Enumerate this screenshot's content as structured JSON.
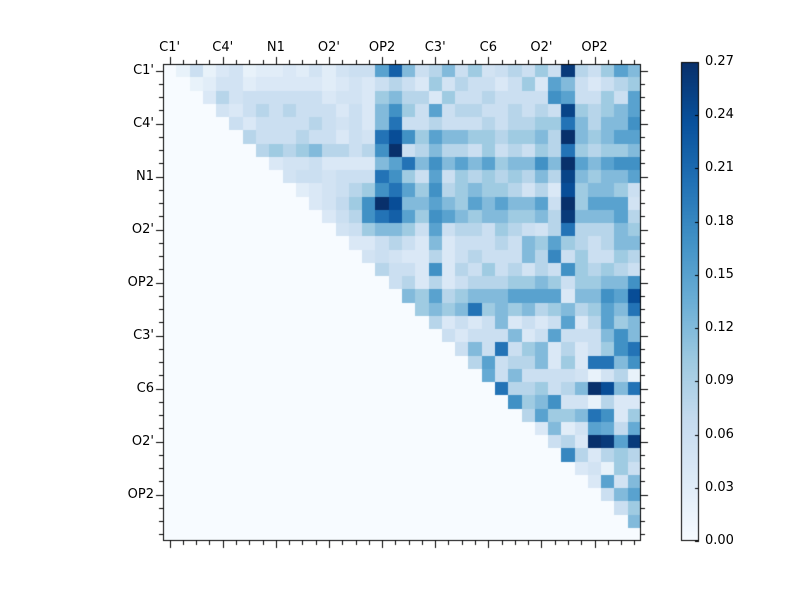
{
  "chart_data": {
    "type": "heatmap",
    "title": "",
    "xlabel": "",
    "ylabel": "",
    "n": 36,
    "x_tick_labels": [
      "C1'",
      "C4'",
      "N1",
      "O2'",
      "OP2",
      "C3'",
      "C6",
      "O2'",
      "OP2"
    ],
    "y_tick_labels": [
      "C1'",
      "C4'",
      "N1",
      "O2'",
      "OP2",
      "C3'",
      "C6",
      "O2'",
      "OP2"
    ],
    "tick_label_cell_positions": [
      0,
      4,
      8,
      12,
      16,
      20,
      24,
      28,
      32
    ],
    "triangle": "upper",
    "grid": false,
    "colorbar": {
      "position": "right",
      "vmin": 0.0,
      "vmax": 0.27,
      "tick_labels": [
        "0.00",
        "0.03",
        "0.06",
        "0.09",
        "0.12",
        "0.15",
        "0.18",
        "0.21",
        "0.24",
        "0.27"
      ]
    },
    "matrix": [
      [
        0,
        0.02,
        0.06,
        0.02,
        0.04,
        0.05,
        0.02,
        0.03,
        0.03,
        0.04,
        0.03,
        0.05,
        0.03,
        0.05,
        0.06,
        0.06,
        0.15,
        0.22,
        0.12,
        0.06,
        0.08,
        0.12,
        0.06,
        0.1,
        0.05,
        0.06,
        0.08,
        0.06,
        0.1,
        0.06,
        0.26,
        0.08,
        0.06,
        0.1,
        0.15,
        0.12
      ],
      [
        0,
        0,
        0.02,
        0.03,
        0.05,
        0.05,
        0.03,
        0.04,
        0.04,
        0.04,
        0.04,
        0.04,
        0.03,
        0.04,
        0.05,
        0.04,
        0.06,
        0.08,
        0.06,
        0.04,
        0.1,
        0.05,
        0.08,
        0.06,
        0.06,
        0.04,
        0.06,
        0.1,
        0.04,
        0.15,
        0.12,
        0.06,
        0.04,
        0.06,
        0.08,
        0.1
      ],
      [
        0,
        0,
        0,
        0.04,
        0.08,
        0.05,
        0.06,
        0.06,
        0.06,
        0.06,
        0.06,
        0.06,
        0.04,
        0.05,
        0.05,
        0.04,
        0.1,
        0.12,
        0.08,
        0.08,
        0.04,
        0.1,
        0.06,
        0.06,
        0.08,
        0.06,
        0.06,
        0.06,
        0.06,
        0.17,
        0.15,
        0.06,
        0.06,
        0.1,
        0.06,
        0.15
      ],
      [
        0,
        0,
        0,
        0,
        0.05,
        0.04,
        0.06,
        0.08,
        0.06,
        0.08,
        0.06,
        0.06,
        0.06,
        0.04,
        0.06,
        0.04,
        0.12,
        0.17,
        0.1,
        0.06,
        0.15,
        0.06,
        0.08,
        0.08,
        0.06,
        0.06,
        0.08,
        0.06,
        0.08,
        0.06,
        0.25,
        0.1,
        0.08,
        0.1,
        0.12,
        0.15
      ],
      [
        0,
        0,
        0,
        0,
        0,
        0.06,
        0.04,
        0.06,
        0.06,
        0.06,
        0.06,
        0.08,
        0.06,
        0.05,
        0.06,
        0.04,
        0.12,
        0.2,
        0.06,
        0.06,
        0.08,
        0.06,
        0.06,
        0.06,
        0.08,
        0.06,
        0.08,
        0.08,
        0.1,
        0.1,
        0.2,
        0.12,
        0.08,
        0.12,
        0.12,
        0.17
      ],
      [
        0,
        0,
        0,
        0,
        0,
        0,
        0.08,
        0.06,
        0.06,
        0.06,
        0.08,
        0.06,
        0.06,
        0.04,
        0.06,
        0.05,
        0.2,
        0.24,
        0.17,
        0.1,
        0.15,
        0.12,
        0.12,
        0.1,
        0.1,
        0.08,
        0.1,
        0.1,
        0.12,
        0.08,
        0.27,
        0.12,
        0.1,
        0.12,
        0.15,
        0.15
      ],
      [
        0,
        0,
        0,
        0,
        0,
        0,
        0,
        0.08,
        0.1,
        0.08,
        0.1,
        0.12,
        0.08,
        0.08,
        0.06,
        0.08,
        0.17,
        0.27,
        0.06,
        0.08,
        0.12,
        0.08,
        0.08,
        0.06,
        0.1,
        0.06,
        0.08,
        0.06,
        0.1,
        0.08,
        0.2,
        0.1,
        0.08,
        0.1,
        0.1,
        0.12
      ],
      [
        0,
        0,
        0,
        0,
        0,
        0,
        0,
        0,
        0.04,
        0.05,
        0.05,
        0.06,
        0.04,
        0.04,
        0.04,
        0.04,
        0.12,
        0.15,
        0.2,
        0.12,
        0.17,
        0.12,
        0.15,
        0.12,
        0.15,
        0.1,
        0.12,
        0.12,
        0.17,
        0.12,
        0.27,
        0.15,
        0.12,
        0.15,
        0.17,
        0.17
      ],
      [
        0,
        0,
        0,
        0,
        0,
        0,
        0,
        0,
        0,
        0.05,
        0.06,
        0.06,
        0.05,
        0.06,
        0.06,
        0.06,
        0.2,
        0.17,
        0.1,
        0.06,
        0.15,
        0.06,
        0.1,
        0.08,
        0.1,
        0.08,
        0.1,
        0.08,
        0.12,
        0.08,
        0.25,
        0.12,
        0.1,
        0.12,
        0.12,
        0.15
      ],
      [
        0,
        0,
        0,
        0,
        0,
        0,
        0,
        0,
        0,
        0,
        0.03,
        0.04,
        0.05,
        0.06,
        0.08,
        0.1,
        0.17,
        0.2,
        0.15,
        0.1,
        0.17,
        0.08,
        0.1,
        0.12,
        0.1,
        0.1,
        0.08,
        0.05,
        0.08,
        0.04,
        0.24,
        0.1,
        0.12,
        0.12,
        0.1,
        0.06
      ],
      [
        0,
        0,
        0,
        0,
        0,
        0,
        0,
        0,
        0,
        0,
        0,
        0.04,
        0.05,
        0.07,
        0.1,
        0.17,
        0.27,
        0.24,
        0.12,
        0.12,
        0.15,
        0.12,
        0.1,
        0.15,
        0.12,
        0.15,
        0.12,
        0.12,
        0.15,
        0.06,
        0.27,
        0.1,
        0.15,
        0.15,
        0.15,
        0.05
      ],
      [
        0,
        0,
        0,
        0,
        0,
        0,
        0,
        0,
        0,
        0,
        0,
        0,
        0.04,
        0.06,
        0.08,
        0.17,
        0.2,
        0.22,
        0.15,
        0.1,
        0.17,
        0.15,
        0.12,
        0.1,
        0.12,
        0.12,
        0.1,
        0.1,
        0.12,
        0.08,
        0.26,
        0.12,
        0.12,
        0.12,
        0.15,
        0.08
      ],
      [
        0,
        0,
        0,
        0,
        0,
        0,
        0,
        0,
        0,
        0,
        0,
        0,
        0,
        0.05,
        0.06,
        0.1,
        0.12,
        0.12,
        0.1,
        0.06,
        0.15,
        0.06,
        0.08,
        0.08,
        0.06,
        0.1,
        0.08,
        0.06,
        0.05,
        0.08,
        0.2,
        0.08,
        0.08,
        0.08,
        0.12,
        0.1
      ],
      [
        0,
        0,
        0,
        0,
        0,
        0,
        0,
        0,
        0,
        0,
        0,
        0,
        0,
        0,
        0.04,
        0.04,
        0.06,
        0.08,
        0.06,
        0.04,
        0.12,
        0.04,
        0.06,
        0.06,
        0.06,
        0.08,
        0.06,
        0.12,
        0.1,
        0.15,
        0.1,
        0.08,
        0.06,
        0.08,
        0.12,
        0.12
      ],
      [
        0,
        0,
        0,
        0,
        0,
        0,
        0,
        0,
        0,
        0,
        0,
        0,
        0,
        0,
        0,
        0.05,
        0.06,
        0.05,
        0.04,
        0.04,
        0.08,
        0.04,
        0.06,
        0.08,
        0.06,
        0.06,
        0.06,
        0.12,
        0.08,
        0.18,
        0.06,
        0.1,
        0.06,
        0.06,
        0.1,
        0.08
      ],
      [
        0,
        0,
        0,
        0,
        0,
        0,
        0,
        0,
        0,
        0,
        0,
        0,
        0,
        0,
        0,
        0,
        0.08,
        0.06,
        0.06,
        0.04,
        0.17,
        0.04,
        0.08,
        0.06,
        0.1,
        0.06,
        0.08,
        0.05,
        0.08,
        0.06,
        0.17,
        0.1,
        0.08,
        0.1,
        0.08,
        0.06
      ],
      [
        0,
        0,
        0,
        0,
        0,
        0,
        0,
        0,
        0,
        0,
        0,
        0,
        0,
        0,
        0,
        0,
        0,
        0.06,
        0.08,
        0.04,
        0.08,
        0.04,
        0.06,
        0.08,
        0.08,
        0.08,
        0.1,
        0.1,
        0.12,
        0.1,
        0.06,
        0.1,
        0.1,
        0.12,
        0.12,
        0.17
      ],
      [
        0,
        0,
        0,
        0,
        0,
        0,
        0,
        0,
        0,
        0,
        0,
        0,
        0,
        0,
        0,
        0,
        0,
        0,
        0.12,
        0.1,
        0.15,
        0.08,
        0.1,
        0.12,
        0.12,
        0.12,
        0.15,
        0.15,
        0.15,
        0.15,
        0.04,
        0.12,
        0.12,
        0.17,
        0.15,
        0.24
      ],
      [
        0,
        0,
        0,
        0,
        0,
        0,
        0,
        0,
        0,
        0,
        0,
        0,
        0,
        0,
        0,
        0,
        0,
        0,
        0,
        0.1,
        0.12,
        0.1,
        0.12,
        0.2,
        0.1,
        0.12,
        0.1,
        0.12,
        0.08,
        0.1,
        0.12,
        0.08,
        0.1,
        0.15,
        0.12,
        0.2
      ],
      [
        0,
        0,
        0,
        0,
        0,
        0,
        0,
        0,
        0,
        0,
        0,
        0,
        0,
        0,
        0,
        0,
        0,
        0,
        0,
        0,
        0.08,
        0.04,
        0.06,
        0.04,
        0.06,
        0.12,
        0.04,
        0.06,
        0.04,
        0.06,
        0.15,
        0.04,
        0.08,
        0.15,
        0.1,
        0.12
      ],
      [
        0,
        0,
        0,
        0,
        0,
        0,
        0,
        0,
        0,
        0,
        0,
        0,
        0,
        0,
        0,
        0,
        0,
        0,
        0,
        0,
        0,
        0.06,
        0.04,
        0.06,
        0.06,
        0.06,
        0.12,
        0.04,
        0.06,
        0.15,
        0.06,
        0.06,
        0.06,
        0.12,
        0.17,
        0.12
      ],
      [
        0,
        0,
        0,
        0,
        0,
        0,
        0,
        0,
        0,
        0,
        0,
        0,
        0,
        0,
        0,
        0,
        0,
        0,
        0,
        0,
        0,
        0,
        0.06,
        0.12,
        0.06,
        0.2,
        0.06,
        0.1,
        0.12,
        0.04,
        0.08,
        0.04,
        0.06,
        0.1,
        0.17,
        0.2
      ],
      [
        0,
        0,
        0,
        0,
        0,
        0,
        0,
        0,
        0,
        0,
        0,
        0,
        0,
        0,
        0,
        0,
        0,
        0,
        0,
        0,
        0,
        0,
        0,
        0.08,
        0.15,
        0.06,
        0.08,
        0.08,
        0.12,
        0.04,
        0.1,
        0.04,
        0.2,
        0.2,
        0.12,
        0.17
      ],
      [
        0,
        0,
        0,
        0,
        0,
        0,
        0,
        0,
        0,
        0,
        0,
        0,
        0,
        0,
        0,
        0,
        0,
        0,
        0,
        0,
        0,
        0,
        0,
        0,
        0.14,
        0.06,
        0.12,
        0.06,
        0.06,
        0.06,
        0.06,
        0.05,
        0.02,
        0.05,
        0.08,
        0.02
      ],
      [
        0,
        0,
        0,
        0,
        0,
        0,
        0,
        0,
        0,
        0,
        0,
        0,
        0,
        0,
        0,
        0,
        0,
        0,
        0,
        0,
        0,
        0,
        0,
        0,
        0,
        0.2,
        0.08,
        0.08,
        0.1,
        0.06,
        0.08,
        0.12,
        0.27,
        0.24,
        0.12,
        0.2
      ],
      [
        0,
        0,
        0,
        0,
        0,
        0,
        0,
        0,
        0,
        0,
        0,
        0,
        0,
        0,
        0,
        0,
        0,
        0,
        0,
        0,
        0,
        0,
        0,
        0,
        0,
        0,
        0.17,
        0.1,
        0.12,
        0.17,
        0.05,
        0.05,
        0.02,
        0.08,
        0.04,
        0.04
      ],
      [
        0,
        0,
        0,
        0,
        0,
        0,
        0,
        0,
        0,
        0,
        0,
        0,
        0,
        0,
        0,
        0,
        0,
        0,
        0,
        0,
        0,
        0,
        0,
        0,
        0,
        0,
        0,
        0.08,
        0.15,
        0.1,
        0.1,
        0.12,
        0.2,
        0.17,
        0.04,
        0.1
      ],
      [
        0,
        0,
        0,
        0,
        0,
        0,
        0,
        0,
        0,
        0,
        0,
        0,
        0,
        0,
        0,
        0,
        0,
        0,
        0,
        0,
        0,
        0,
        0,
        0,
        0,
        0,
        0,
        0,
        0.04,
        0.12,
        0.03,
        0.05,
        0.15,
        0.14,
        0.07,
        0.14
      ],
      [
        0,
        0,
        0,
        0,
        0,
        0,
        0,
        0,
        0,
        0,
        0,
        0,
        0,
        0,
        0,
        0,
        0,
        0,
        0,
        0,
        0,
        0,
        0,
        0,
        0,
        0,
        0,
        0,
        0,
        0.06,
        0.08,
        0.04,
        0.27,
        0.26,
        0.15,
        0.26
      ],
      [
        0,
        0,
        0,
        0,
        0,
        0,
        0,
        0,
        0,
        0,
        0,
        0,
        0,
        0,
        0,
        0,
        0,
        0,
        0,
        0,
        0,
        0,
        0,
        0,
        0,
        0,
        0,
        0,
        0,
        0,
        0.18,
        0.08,
        0.04,
        0.08,
        0.1,
        0.08
      ],
      [
        0,
        0,
        0,
        0,
        0,
        0,
        0,
        0,
        0,
        0,
        0,
        0,
        0,
        0,
        0,
        0,
        0,
        0,
        0,
        0,
        0,
        0,
        0,
        0,
        0,
        0,
        0,
        0,
        0,
        0,
        0,
        0.04,
        0.05,
        0.02,
        0.1,
        0.06
      ],
      [
        0,
        0,
        0,
        0,
        0,
        0,
        0,
        0,
        0,
        0,
        0,
        0,
        0,
        0,
        0,
        0,
        0,
        0,
        0,
        0,
        0,
        0,
        0,
        0,
        0,
        0,
        0,
        0,
        0,
        0,
        0,
        0,
        0.04,
        0.15,
        0.05,
        0.12
      ],
      [
        0,
        0,
        0,
        0,
        0,
        0,
        0,
        0,
        0,
        0,
        0,
        0,
        0,
        0,
        0,
        0,
        0,
        0,
        0,
        0,
        0,
        0,
        0,
        0,
        0,
        0,
        0,
        0,
        0,
        0,
        0,
        0,
        0,
        0.06,
        0.12,
        0.15
      ],
      [
        0,
        0,
        0,
        0,
        0,
        0,
        0,
        0,
        0,
        0,
        0,
        0,
        0,
        0,
        0,
        0,
        0,
        0,
        0,
        0,
        0,
        0,
        0,
        0,
        0,
        0,
        0,
        0,
        0,
        0,
        0,
        0,
        0,
        0,
        0.06,
        0.1
      ],
      [
        0,
        0,
        0,
        0,
        0,
        0,
        0,
        0,
        0,
        0,
        0,
        0,
        0,
        0,
        0,
        0,
        0,
        0,
        0,
        0,
        0,
        0,
        0,
        0,
        0,
        0,
        0,
        0,
        0,
        0,
        0,
        0,
        0,
        0,
        0,
        0.12
      ],
      [
        0,
        0,
        0,
        0,
        0,
        0,
        0,
        0,
        0,
        0,
        0,
        0,
        0,
        0,
        0,
        0,
        0,
        0,
        0,
        0,
        0,
        0,
        0,
        0,
        0,
        0,
        0,
        0,
        0,
        0,
        0,
        0,
        0,
        0,
        0,
        0
      ]
    ]
  },
  "colors": {
    "background": "#ffffff",
    "axis_line": "#000000",
    "tick": "#000000",
    "label_text": "#000000",
    "colormap_name": "Blues",
    "colormap_stops": [
      "#f7fbff",
      "#deebf7",
      "#c6dbef",
      "#9ecae1",
      "#6baed6",
      "#4292c6",
      "#2171b5",
      "#08519c",
      "#08306b"
    ]
  }
}
